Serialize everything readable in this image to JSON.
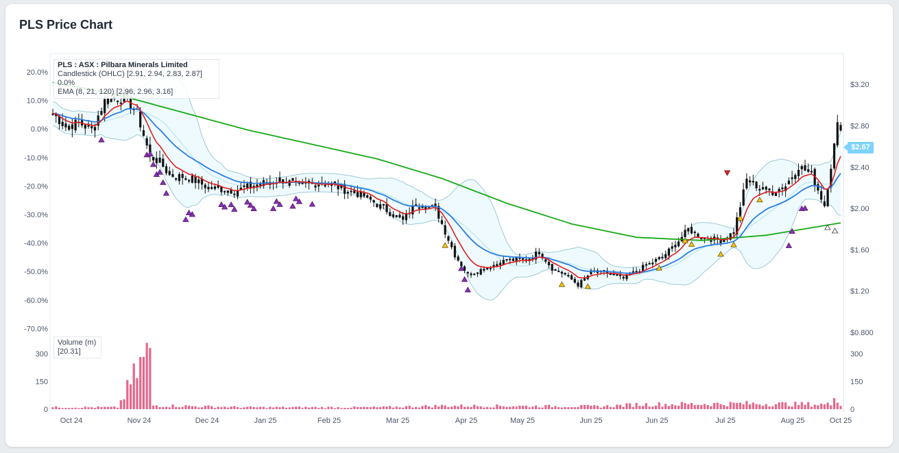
{
  "title": "PLS Price Chart",
  "legend": {
    "symbol": "PLS : ASX : Pilbara Minerals Limited",
    "candle": "Candlestick (OHLC) [2.91, 2.94, 2.83, 2.87] 0.0%",
    "ema": "EMA (8, 21, 120) [2.96, 2.96, 3.16]"
  },
  "volume_legend": {
    "label": "Volume (m)",
    "value": "[20.31]"
  },
  "last_price": "$2.67",
  "colors": {
    "up": "#111111",
    "ema8": "#e11d1d",
    "ema21": "#2a7de1",
    "ema120": "#15a815",
    "band_fill": "#eefafd",
    "band_line": "#9ec9d6",
    "volume": "#e5668a",
    "buy": "#f5c518",
    "sell": "#8b2fb8",
    "sell_down": "#e02424"
  },
  "chart_data": {
    "type": "candlestick",
    "x_tick_labels": [
      "Oct 24",
      "Nov 24",
      "Dec 24",
      "Jan 25",
      "Feb 25",
      "Mar 25",
      "Apr 25",
      "May 25",
      "Jun 25",
      "Jun 25",
      "Jul 25",
      "Aug 25",
      "Oct 25"
    ],
    "pct_tick_labels": [
      "20.0%",
      "10.0%",
      "0.0%",
      "-10.0%",
      "-20.0%",
      "-30.0%",
      "-40.0%",
      "-50.0%",
      "-60.0%",
      "-70.0%"
    ],
    "price_tick_labels": [
      "$3.20",
      "$2.80",
      "$2.40",
      "$2.00",
      "$1.60",
      "$1.20",
      "$0.800"
    ],
    "volume_tick_labels": [
      "300",
      "150",
      "0"
    ],
    "price_range": [
      0.78,
      3.5
    ],
    "volume_range": [
      0,
      340
    ],
    "close_anchors": [
      [
        0,
        2.92
      ],
      [
        4,
        2.79
      ],
      [
        8,
        2.83
      ],
      [
        12,
        2.76
      ],
      [
        16,
        3.04
      ],
      [
        22,
        3.08
      ],
      [
        26,
        2.92
      ],
      [
        30,
        2.5
      ],
      [
        33,
        2.45
      ],
      [
        36,
        2.32
      ],
      [
        42,
        2.3
      ],
      [
        48,
        2.2
      ],
      [
        56,
        2.17
      ],
      [
        64,
        2.24
      ],
      [
        70,
        2.28
      ],
      [
        76,
        2.22
      ],
      [
        84,
        2.25
      ],
      [
        90,
        2.18
      ],
      [
        96,
        2.12
      ],
      [
        102,
        2.0
      ],
      [
        108,
        1.88
      ],
      [
        112,
        2.05
      ],
      [
        118,
        2.0
      ],
      [
        124,
        1.55
      ],
      [
        128,
        1.36
      ],
      [
        134,
        1.43
      ],
      [
        140,
        1.5
      ],
      [
        146,
        1.5
      ],
      [
        150,
        1.58
      ],
      [
        154,
        1.42
      ],
      [
        158,
        1.36
      ],
      [
        162,
        1.26
      ],
      [
        166,
        1.38
      ],
      [
        172,
        1.37
      ],
      [
        176,
        1.32
      ],
      [
        182,
        1.43
      ],
      [
        188,
        1.53
      ],
      [
        192,
        1.65
      ],
      [
        196,
        1.8
      ],
      [
        200,
        1.72
      ],
      [
        206,
        1.69
      ],
      [
        210,
        1.77
      ],
      [
        214,
        2.28
      ],
      [
        218,
        2.2
      ],
      [
        222,
        2.16
      ],
      [
        226,
        2.22
      ],
      [
        230,
        2.41
      ],
      [
        234,
        2.33
      ],
      [
        238,
        2.03
      ],
      [
        242,
        2.8
      ]
    ],
    "volume_anchors": [
      [
        0,
        10
      ],
      [
        20,
        10
      ],
      [
        30,
        330
      ],
      [
        31,
        20
      ],
      [
        60,
        10
      ],
      [
        100,
        10
      ],
      [
        120,
        18
      ],
      [
        170,
        15
      ],
      [
        180,
        25
      ],
      [
        200,
        28
      ],
      [
        214,
        30
      ],
      [
        240,
        25
      ],
      [
        241,
        105
      ],
      [
        243,
        20
      ]
    ],
    "ema_120_anchors": [
      [
        0,
        3.22
      ],
      [
        20,
        3.1
      ],
      [
        40,
        2.93
      ],
      [
        60,
        2.76
      ],
      [
        80,
        2.62
      ],
      [
        100,
        2.48
      ],
      [
        120,
        2.29
      ],
      [
        140,
        2.05
      ],
      [
        160,
        1.85
      ],
      [
        180,
        1.72
      ],
      [
        200,
        1.69
      ],
      [
        220,
        1.74
      ],
      [
        243,
        1.86
      ]
    ],
    "buy_signals": [
      121,
      157,
      165,
      187,
      195,
      197,
      206,
      210,
      212,
      218
    ],
    "sell_signals": [
      15,
      29,
      30,
      31,
      32,
      33,
      34,
      35,
      41,
      42,
      43,
      52,
      53,
      55,
      56,
      60,
      61,
      62,
      68,
      69,
      70,
      74,
      75,
      76,
      80,
      126,
      127,
      128,
      227,
      228,
      231,
      232
    ],
    "sell_down_signals": [
      208
    ],
    "last_signals": [
      240,
      241
    ]
  }
}
